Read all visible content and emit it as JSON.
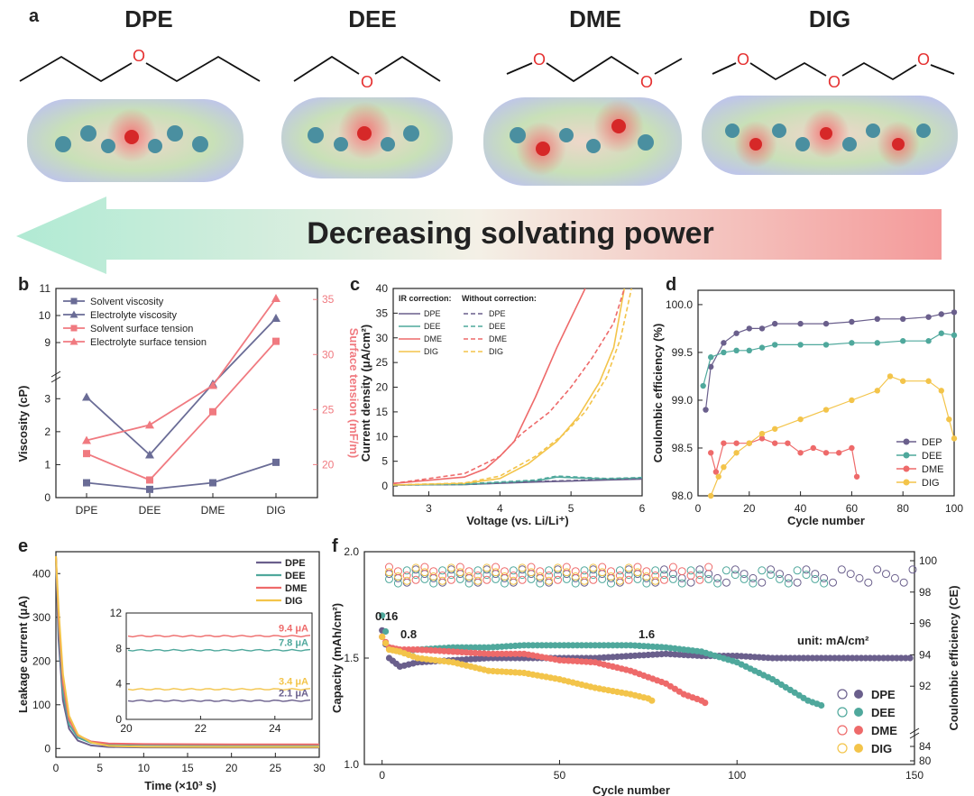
{
  "figure": {
    "panel_a": {
      "letter": "a",
      "molecules": [
        {
          "name": "DPE"
        },
        {
          "name": "DEE"
        },
        {
          "name": "DME"
        },
        {
          "name": "DIG"
        }
      ],
      "atom_label": "O",
      "arrow_text": "Decreasing solvating power"
    },
    "colors": {
      "DPE": "#6a5f8c",
      "DEE": "#4fa89c",
      "DME": "#ee6a6a",
      "DIG": "#f3c44a",
      "viscosity": "#6a6c96",
      "tension": "#f07a80",
      "arrow_left": "#9fe0c8",
      "arrow_right": "#f5a0a0"
    }
  },
  "chart_data": [
    {
      "panel": "b",
      "type": "line",
      "categories": [
        "DPE",
        "DEE",
        "DME",
        "DIG"
      ],
      "ylabel": "Viscosity (cP)",
      "y2label": "Surface tension (mF/m)",
      "ylim_lower": [
        0,
        3.5
      ],
      "ylim_upper": [
        8,
        11
      ],
      "yticks_lower": [
        "0",
        "1",
        "2",
        "3"
      ],
      "yticks_upper": [
        "9",
        "10",
        "11"
      ],
      "y2lim": [
        17,
        36
      ],
      "y2ticks": [
        "20",
        "25",
        "30",
        "35"
      ],
      "series": [
        {
          "name": "Solvent viscosity",
          "axis": "left",
          "marker": "square",
          "values": [
            0.45,
            0.25,
            0.45,
            1.07
          ]
        },
        {
          "name": "Electrolyte viscosity",
          "axis": "left",
          "marker": "triangle",
          "values": [
            3.05,
            1.3,
            3.45,
            9.9
          ]
        },
        {
          "name": "Solvent surface tension",
          "axis": "right",
          "marker": "square",
          "values": [
            21,
            18.6,
            24.8,
            31.2
          ]
        },
        {
          "name": "Electrolyte surface tension",
          "axis": "right",
          "marker": "triangle",
          "values": [
            22.2,
            23.6,
            27.2,
            35.1
          ]
        }
      ]
    },
    {
      "panel": "c",
      "type": "line",
      "xlabel": "Voltage (vs. Li/Li⁺)",
      "ylabel": "Current density (μA/cm²)",
      "xlim": [
        2.5,
        6
      ],
      "ylim": [
        -2,
        40
      ],
      "xticks": [
        "3",
        "4",
        "5",
        "6"
      ],
      "yticks": [
        "0",
        "5",
        "10",
        "15",
        "20",
        "25",
        "30",
        "35",
        "40"
      ],
      "legend_head_solid": "IR correction:",
      "legend_head_dashed": "Without correction:",
      "series": [
        {
          "name": "DPE",
          "style": "solid",
          "x": [
            2.5,
            3.5,
            4.5,
            5.5,
            6
          ],
          "y": [
            0.2,
            0.3,
            0.8,
            1.2,
            1.4
          ]
        },
        {
          "name": "DEE",
          "style": "solid",
          "x": [
            2.5,
            3.5,
            4.5,
            4.8,
            5.5,
            6
          ],
          "y": [
            0.2,
            0.3,
            1.0,
            1.8,
            1.4,
            1.6
          ]
        },
        {
          "name": "DME",
          "style": "solid",
          "x": [
            2.5,
            3.5,
            3.8,
            4.0,
            4.2,
            4.5,
            4.8,
            5.0,
            5.2
          ],
          "y": [
            0.5,
            1.8,
            3.5,
            6.0,
            9.0,
            18,
            28,
            34,
            40
          ]
        },
        {
          "name": "DIG",
          "style": "solid",
          "x": [
            2.5,
            3.5,
            4.0,
            4.4,
            4.8,
            5.1,
            5.4,
            5.6,
            5.75
          ],
          "y": [
            0.2,
            0.5,
            1.5,
            4.5,
            9.0,
            14,
            21,
            28,
            40
          ]
        },
        {
          "name": "DPE",
          "style": "dashed",
          "x": [
            2.5,
            3.5,
            4.5,
            5.5,
            6
          ],
          "y": [
            0.2,
            0.3,
            0.9,
            1.3,
            1.5
          ]
        },
        {
          "name": "DEE",
          "style": "dashed",
          "x": [
            2.5,
            3.5,
            4.5,
            4.8,
            5.5,
            6
          ],
          "y": [
            0.2,
            0.4,
            1.2,
            2.0,
            1.5,
            1.7
          ]
        },
        {
          "name": "DME",
          "style": "dashed",
          "x": [
            2.5,
            3.5,
            4.0,
            4.3,
            4.7,
            5.0,
            5.3,
            5.6,
            5.75
          ],
          "y": [
            0.5,
            2.5,
            6.0,
            10.5,
            15,
            20,
            26,
            33,
            40
          ]
        },
        {
          "name": "DIG",
          "style": "dashed",
          "x": [
            2.5,
            3.5,
            4.0,
            4.5,
            4.9,
            5.2,
            5.5,
            5.7,
            5.85
          ],
          "y": [
            0.2,
            0.6,
            2.0,
            6.0,
            10.5,
            15,
            22,
            30,
            40
          ]
        }
      ]
    },
    {
      "panel": "d",
      "type": "scatter",
      "xlabel": "Cycle number",
      "ylabel": "Coulombic efficiency (%)",
      "xlim": [
        0,
        100
      ],
      "ylim": [
        98.0,
        100.15
      ],
      "xticks": [
        "0",
        "20",
        "40",
        "60",
        "80",
        "100"
      ],
      "yticks": [
        "98.0",
        "98.5",
        "99.0",
        "99.5",
        "100.0"
      ],
      "series": [
        {
          "name": "DEP",
          "key": "DPE",
          "x": [
            3,
            5,
            10,
            15,
            20,
            25,
            30,
            40,
            50,
            60,
            70,
            80,
            90,
            95,
            100
          ],
          "y": [
            98.9,
            99.35,
            99.6,
            99.7,
            99.75,
            99.75,
            99.8,
            99.8,
            99.8,
            99.82,
            99.85,
            99.85,
            99.87,
            99.9,
            99.92
          ]
        },
        {
          "name": "DEE",
          "key": "DEE",
          "x": [
            2,
            5,
            10,
            15,
            20,
            25,
            30,
            40,
            50,
            60,
            70,
            80,
            90,
            95,
            100
          ],
          "y": [
            99.15,
            99.45,
            99.5,
            99.52,
            99.52,
            99.55,
            99.58,
            99.58,
            99.58,
            99.6,
            99.6,
            99.62,
            99.62,
            99.7,
            99.68
          ]
        },
        {
          "name": "DME",
          "key": "DME",
          "x": [
            5,
            7,
            10,
            15,
            20,
            25,
            30,
            35,
            40,
            45,
            50,
            55,
            60,
            62
          ],
          "y": [
            98.45,
            98.25,
            98.55,
            98.55,
            98.55,
            98.6,
            98.55,
            98.55,
            98.45,
            98.5,
            98.45,
            98.45,
            98.5,
            98.2
          ]
        },
        {
          "name": "DIG",
          "key": "DIG",
          "x": [
            5,
            8,
            10,
            15,
            20,
            25,
            30,
            40,
            50,
            60,
            70,
            75,
            80,
            90,
            95,
            98,
            100
          ],
          "y": [
            98.0,
            98.2,
            98.3,
            98.45,
            98.55,
            98.65,
            98.7,
            98.8,
            98.9,
            99.0,
            99.1,
            99.25,
            99.2,
            99.2,
            99.1,
            98.8,
            98.6
          ]
        }
      ]
    },
    {
      "panel": "e",
      "type": "line",
      "xlabel": "Time (×10³ s)",
      "ylabel": "Leakage current (μA)",
      "xlim": [
        0,
        30
      ],
      "ylim": [
        -20,
        450
      ],
      "xticks": [
        "0",
        "5",
        "10",
        "15",
        "20",
        "25",
        "30"
      ],
      "yticks": [
        "0",
        "100",
        "200",
        "300",
        "400"
      ],
      "series": [
        {
          "name": "DPE",
          "x": [
            0,
            0.3,
            0.8,
            1.5,
            2.5,
            4,
            6,
            10,
            20,
            30
          ],
          "y": [
            440,
            250,
            110,
            45,
            18,
            7,
            3.5,
            2.5,
            2.2,
            2.1
          ]
        },
        {
          "name": "DEE",
          "x": [
            0,
            0.3,
            0.8,
            1.5,
            2.5,
            4,
            6,
            10,
            20,
            30
          ],
          "y": [
            440,
            280,
            130,
            55,
            25,
            13,
            9.5,
            8.2,
            7.9,
            7.8
          ]
        },
        {
          "name": "DME",
          "x": [
            0,
            0.3,
            0.8,
            1.5,
            2.5,
            4,
            6,
            10,
            20,
            30
          ],
          "y": [
            440,
            300,
            150,
            65,
            30,
            16,
            11.5,
            10,
            9.5,
            9.4
          ]
        },
        {
          "name": "DIG",
          "x": [
            0,
            0.3,
            0.8,
            1.5,
            2.5,
            4,
            6,
            10,
            20,
            30
          ],
          "y": [
            440,
            320,
            170,
            75,
            32,
            14,
            6,
            4,
            3.5,
            3.4
          ]
        }
      ],
      "inset": {
        "xlim": [
          20,
          25
        ],
        "ylim": [
          0,
          12
        ],
        "xticks": [
          "20",
          "22",
          "24"
        ],
        "yticks": [
          "0",
          "4",
          "8",
          "12"
        ],
        "annotations": [
          "9.4 μA",
          "7.8 μA",
          "3.4 μA",
          "2.1 μA"
        ],
        "values": [
          9.4,
          7.8,
          3.4,
          2.1
        ]
      }
    },
    {
      "panel": "f",
      "type": "scatter",
      "xlabel": "Cycle number",
      "ylabel": "Capacity (mAh/cm²)",
      "y2label": "Coulombic efficiency (CE)",
      "xlim": [
        -5,
        150
      ],
      "ylim": [
        1.0,
        2.0
      ],
      "xticks": [
        "0",
        "50",
        "100",
        "150"
      ],
      "yticks": [
        "1.0",
        "1.5",
        "2.0"
      ],
      "y2ticks": [
        "80",
        "84",
        "92",
        "94",
        "96",
        "98",
        "100"
      ],
      "annotations": [
        "0.16",
        "0.8",
        "1.6",
        "unit: mA/cm²"
      ],
      "series": [
        {
          "name": "DPE",
          "x": [
            0,
            2,
            5,
            10,
            20,
            30,
            40,
            50,
            60,
            70,
            80,
            90,
            100,
            110,
            120,
            130,
            140,
            150
          ],
          "y": [
            1.63,
            1.5,
            1.46,
            1.48,
            1.49,
            1.5,
            1.5,
            1.5,
            1.5,
            1.51,
            1.52,
            1.51,
            1.51,
            1.5,
            1.5,
            1.5,
            1.5,
            1.5
          ]
        },
        {
          "name": "DEE",
          "x": [
            0,
            2,
            5,
            10,
            20,
            30,
            40,
            50,
            60,
            70,
            80,
            90,
            100,
            110,
            115,
            120,
            125
          ],
          "y": [
            1.7,
            1.55,
            1.53,
            1.54,
            1.55,
            1.55,
            1.56,
            1.56,
            1.56,
            1.56,
            1.55,
            1.53,
            1.48,
            1.4,
            1.35,
            1.3,
            1.27
          ]
        },
        {
          "name": "DME",
          "x": [
            0,
            2,
            5,
            10,
            20,
            30,
            40,
            50,
            60,
            70,
            80,
            85,
            90,
            92
          ],
          "y": [
            1.6,
            1.55,
            1.54,
            1.54,
            1.53,
            1.52,
            1.52,
            1.49,
            1.48,
            1.44,
            1.38,
            1.33,
            1.3,
            1.28
          ]
        },
        {
          "name": "DIG",
          "x": [
            0,
            2,
            5,
            10,
            20,
            30,
            40,
            50,
            60,
            70,
            75,
            77
          ],
          "y": [
            1.6,
            1.54,
            1.53,
            1.5,
            1.48,
            1.44,
            1.43,
            1.4,
            1.36,
            1.33,
            1.31,
            1.29
          ]
        }
      ]
    }
  ]
}
